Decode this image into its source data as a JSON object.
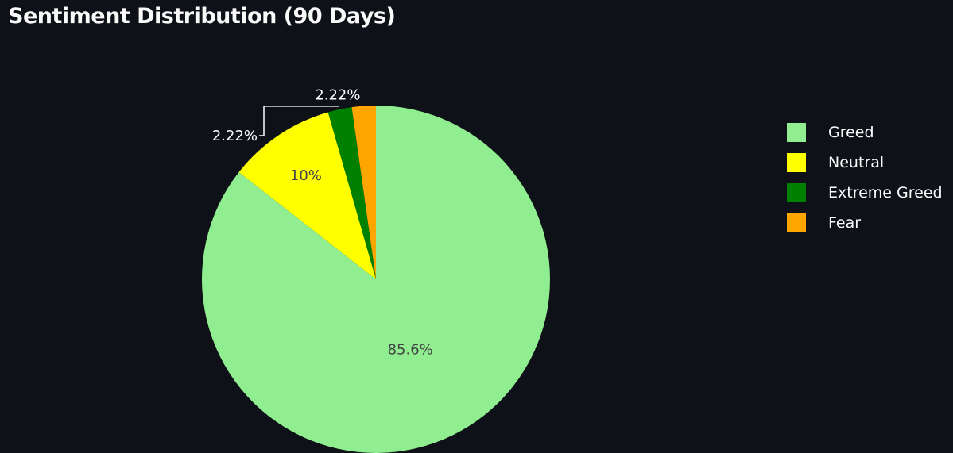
{
  "chart_data": {
    "type": "pie",
    "title": "Sentiment Distribution (90 Days)",
    "legend_position": "right",
    "slices": [
      {
        "label": "Greed",
        "value": 85.6,
        "display": "85.6%",
        "color": "#90ee90",
        "label_color": "#444444"
      },
      {
        "label": "Neutral",
        "value": 10,
        "display": "10%",
        "color": "#ffff00",
        "label_color": "#444444"
      },
      {
        "label": "Extreme Greed",
        "value": 2.22,
        "display": "2.22%",
        "color": "#008000",
        "label_color": "#ffffff"
      },
      {
        "label": "Fear",
        "value": 2.22,
        "display": "2.22%",
        "color": "#ffa500",
        "label_color": "#ffffff"
      }
    ]
  }
}
